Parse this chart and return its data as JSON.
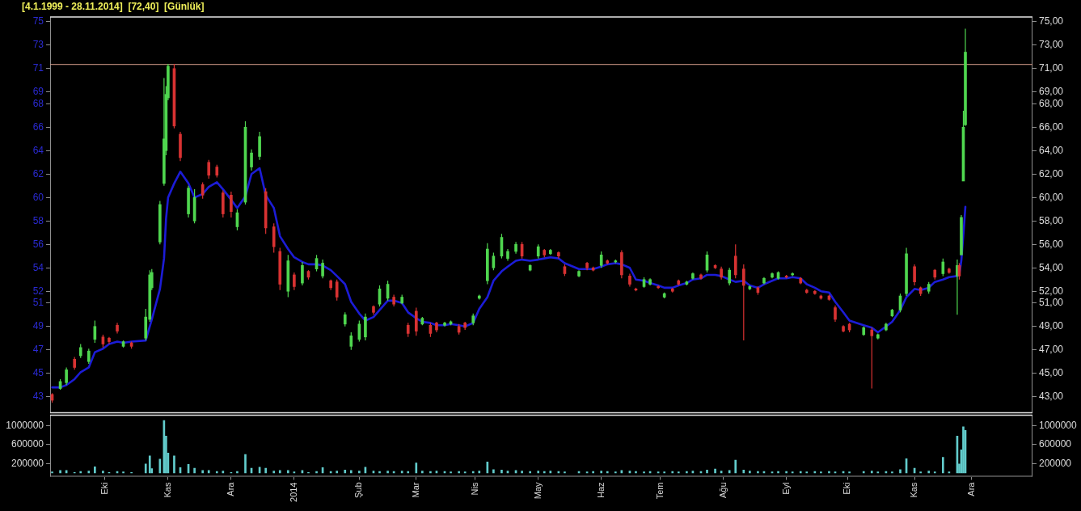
{
  "chart_data": [
    {
      "type": "candlestick",
      "title": "[4.1.1999 - 28.11.2014]  [72,40]  [Günlük]",
      "x": [
        "2013-09-05",
        "2013-09-09",
        "2013-09-12",
        "2013-09-16",
        "2013-09-19",
        "2013-09-23",
        "2013-09-26",
        "2013-09-30",
        "2013-10-03",
        "2013-10-07",
        "2013-10-10",
        "2013-10-14",
        "2013-10-21",
        "2013-10-23",
        "2013-10-24",
        "2013-10-28",
        "2013-10-30",
        "2013-10-31",
        "2013-11-01",
        "2013-11-04",
        "2013-11-07",
        "2013-11-11",
        "2013-11-14",
        "2013-11-18",
        "2013-11-21",
        "2013-11-25",
        "2013-11-28",
        "2013-12-02",
        "2013-12-05",
        "2013-12-09",
        "2013-12-12",
        "2013-12-16",
        "2013-12-19",
        "2013-12-23",
        "2013-12-26",
        "2013-12-30",
        "2014-01-02",
        "2014-01-06",
        "2014-01-09",
        "2014-01-13",
        "2014-01-16",
        "2014-01-20",
        "2014-01-23",
        "2014-01-27",
        "2014-01-30",
        "2014-02-03",
        "2014-02-06",
        "2014-02-10",
        "2014-02-13",
        "2014-02-17",
        "2014-02-20",
        "2014-02-24",
        "2014-02-27",
        "2014-03-03",
        "2014-03-06",
        "2014-03-10",
        "2014-03-13",
        "2014-03-17",
        "2014-03-20",
        "2014-03-24",
        "2014-03-27",
        "2014-03-31",
        "2014-04-03",
        "2014-04-07",
        "2014-04-10",
        "2014-04-14",
        "2014-04-17",
        "2014-04-21",
        "2014-04-24",
        "2014-04-28",
        "2014-05-02",
        "2014-05-05",
        "2014-05-08",
        "2014-05-12",
        "2014-05-15",
        "2014-05-22",
        "2014-05-26",
        "2014-05-29",
        "2014-06-02",
        "2014-06-05",
        "2014-06-09",
        "2014-06-12",
        "2014-06-16",
        "2014-06-19",
        "2014-06-23",
        "2014-06-26",
        "2014-06-30",
        "2014-07-03",
        "2014-07-07",
        "2014-07-10",
        "2014-07-14",
        "2014-07-17",
        "2014-07-21",
        "2014-07-24",
        "2014-07-28",
        "2014-07-31",
        "2014-08-04",
        "2014-08-07",
        "2014-08-11",
        "2014-08-14",
        "2014-08-18",
        "2014-08-21",
        "2014-08-25",
        "2014-08-28",
        "2014-09-01",
        "2014-09-04",
        "2014-09-08",
        "2014-09-11",
        "2014-09-15",
        "2014-09-18",
        "2014-09-22",
        "2014-09-25",
        "2014-09-29",
        "2014-10-02",
        "2014-10-09",
        "2014-10-13",
        "2014-10-16",
        "2014-10-20",
        "2014-10-23",
        "2014-10-27",
        "2014-10-30",
        "2014-11-03",
        "2014-11-06",
        "2014-11-10",
        "2014-11-13",
        "2014-11-17",
        "2014-11-20",
        "2014-11-24",
        "2014-11-25",
        "2014-11-26",
        "2014-11-27",
        "2014-11-28"
      ],
      "ohlc": [
        [
          43.2,
          43.3,
          42.5,
          42.7
        ],
        [
          43.7,
          44.5,
          43.6,
          44.3
        ],
        [
          44.2,
          45.5,
          44.0,
          45.3
        ],
        [
          46.2,
          46.4,
          45.3,
          45.5
        ],
        [
          46.5,
          47.5,
          46.3,
          47.2
        ],
        [
          46.0,
          47.1,
          45.8,
          46.9
        ],
        [
          47.9,
          49.5,
          47.6,
          49.0
        ],
        [
          48.1,
          48.3,
          47.2,
          47.5
        ],
        [
          48.0,
          48.1,
          47.5,
          47.7
        ],
        [
          49.1,
          49.3,
          48.4,
          48.6
        ],
        [
          47.3,
          47.8,
          47.2,
          47.7
        ],
        [
          47.6,
          47.7,
          47.1,
          47.3
        ],
        [
          48.0,
          50.5,
          47.8,
          49.8
        ],
        [
          49.6,
          53.8,
          49.4,
          53.4
        ],
        [
          52.3,
          53.9,
          52.1,
          53.6
        ],
        [
          56.2,
          59.7,
          56.0,
          59.4
        ],
        [
          61.2,
          70.2,
          61.0,
          65.0
        ],
        [
          64.0,
          69.5,
          63.6,
          68.8
        ],
        [
          68.5,
          71.4,
          68.3,
          71.2
        ],
        [
          71.0,
          71.4,
          65.9,
          66.1
        ],
        [
          65.4,
          65.6,
          63.1,
          63.4
        ],
        [
          58.6,
          61.0,
          58.3,
          60.8
        ],
        [
          58.0,
          60.7,
          57.8,
          60.0
        ],
        [
          61.1,
          61.3,
          59.9,
          60.2
        ],
        [
          63.0,
          63.2,
          61.6,
          61.9
        ],
        [
          62.6,
          62.8,
          61.7,
          61.9
        ],
        [
          60.4,
          60.6,
          58.3,
          58.6
        ],
        [
          60.2,
          60.5,
          58.3,
          58.8
        ],
        [
          57.5,
          59.0,
          57.2,
          58.7
        ],
        [
          59.6,
          66.5,
          59.4,
          66.0
        ],
        [
          62.6,
          64.1,
          62.3,
          63.8
        ],
        [
          63.5,
          65.6,
          63.2,
          65.2
        ],
        [
          60.5,
          60.8,
          56.9,
          57.4
        ],
        [
          57.5,
          57.8,
          55.3,
          55.8
        ],
        [
          55.4,
          55.7,
          52.1,
          52.6
        ],
        [
          52.0,
          55.1,
          51.5,
          54.6
        ],
        [
          53.4,
          53.6,
          52.1,
          52.4
        ],
        [
          52.7,
          54.5,
          52.5,
          54.2
        ],
        [
          53.7,
          53.8,
          53.0,
          53.2
        ],
        [
          53.9,
          55.1,
          53.7,
          54.8
        ],
        [
          53.3,
          54.7,
          53.1,
          54.4
        ],
        [
          52.9,
          53.0,
          52.1,
          52.3
        ],
        [
          52.8,
          53.0,
          51.2,
          51.5
        ],
        [
          49.2,
          50.2,
          49.0,
          50.0
        ],
        [
          47.3,
          48.5,
          47.0,
          48.2
        ],
        [
          47.9,
          49.5,
          47.7,
          49.2
        ],
        [
          48.1,
          50.1,
          47.8,
          49.8
        ],
        [
          50.7,
          50.8,
          50.0,
          50.2
        ],
        [
          50.9,
          52.5,
          50.7,
          52.2
        ],
        [
          51.4,
          52.9,
          51.2,
          52.6
        ],
        [
          51.5,
          51.7,
          50.7,
          50.9
        ],
        [
          51.0,
          51.7,
          50.9,
          51.5
        ],
        [
          49.1,
          49.3,
          48.1,
          48.4
        ],
        [
          50.3,
          50.6,
          48.2,
          48.6
        ],
        [
          49.2,
          49.8,
          49.1,
          49.7
        ],
        [
          49.1,
          49.3,
          48.1,
          48.4
        ],
        [
          49.3,
          49.4,
          48.5,
          48.7
        ],
        [
          49.1,
          49.4,
          49.0,
          49.3
        ],
        [
          49.2,
          49.5,
          49.1,
          49.4
        ],
        [
          49.0,
          49.2,
          48.3,
          48.5
        ],
        [
          49.3,
          49.4,
          48.7,
          48.9
        ],
        [
          49.3,
          50.1,
          49.1,
          49.9
        ],
        [
          51.4,
          51.7,
          51.3,
          51.6
        ],
        [
          52.9,
          56.1,
          52.6,
          55.6
        ],
        [
          54.0,
          55.3,
          53.8,
          55.0
        ],
        [
          55.0,
          56.9,
          54.8,
          56.6
        ],
        [
          54.8,
          55.6,
          54.6,
          55.4
        ],
        [
          55.4,
          56.2,
          55.2,
          56.0
        ],
        [
          56.0,
          56.2,
          54.8,
          55.0
        ],
        [
          53.8,
          54.3,
          53.7,
          54.2
        ],
        [
          55.0,
          56.0,
          54.8,
          55.8
        ],
        [
          55.5,
          55.6,
          54.9,
          55.1
        ],
        [
          55.2,
          55.6,
          55.1,
          55.5
        ],
        [
          55.3,
          55.4,
          54.8,
          55.0
        ],
        [
          54.1,
          54.3,
          53.3,
          53.5
        ],
        [
          53.3,
          53.8,
          53.2,
          53.7
        ],
        [
          54.4,
          54.5,
          53.8,
          54.0
        ],
        [
          54.0,
          54.1,
          53.7,
          53.8
        ],
        [
          54.2,
          55.4,
          54.0,
          55.1
        ],
        [
          54.6,
          54.7,
          54.3,
          54.4
        ],
        [
          54.5,
          54.7,
          54.4,
          54.6
        ],
        [
          55.3,
          55.5,
          53.1,
          53.4
        ],
        [
          53.3,
          53.5,
          52.4,
          52.6
        ],
        [
          52.2,
          52.3,
          52.0,
          52.1
        ],
        [
          52.4,
          53.2,
          52.3,
          53.0
        ],
        [
          52.6,
          53.1,
          52.5,
          53.0
        ],
        [
          52.4,
          52.5,
          52.2,
          52.3
        ],
        [
          51.5,
          51.9,
          51.4,
          51.8
        ],
        [
          52.2,
          52.3,
          51.9,
          52.0
        ],
        [
          52.9,
          53.0,
          52.5,
          52.6
        ],
        [
          52.6,
          52.9,
          52.5,
          52.8
        ],
        [
          53.1,
          53.6,
          53.0,
          53.5
        ],
        [
          53.4,
          53.5,
          53.0,
          53.1
        ],
        [
          53.8,
          55.4,
          53.6,
          55.1
        ],
        [
          54.2,
          54.3,
          53.9,
          54.0
        ],
        [
          53.9,
          54.1,
          53.0,
          53.2
        ],
        [
          52.7,
          54.0,
          52.5,
          53.8
        ],
        [
          55.0,
          56.0,
          53.1,
          53.4
        ],
        [
          53.9,
          54.3,
          47.8,
          52.5
        ],
        [
          52.2,
          52.5,
          52.1,
          52.4
        ],
        [
          52.3,
          52.4,
          51.7,
          51.9
        ],
        [
          52.7,
          53.2,
          52.6,
          53.1
        ],
        [
          53.2,
          53.6,
          53.1,
          53.5
        ],
        [
          53.1,
          53.7,
          53.0,
          53.6
        ],
        [
          53.3,
          53.4,
          53.1,
          53.2
        ],
        [
          53.4,
          53.6,
          53.3,
          53.5
        ],
        [
          53.1,
          53.2,
          52.6,
          52.7
        ],
        [
          52.1,
          52.2,
          51.8,
          51.9
        ],
        [
          52.0,
          52.1,
          51.7,
          51.8
        ],
        [
          51.6,
          51.7,
          51.3,
          51.4
        ],
        [
          51.6,
          51.7,
          51.2,
          51.3
        ],
        [
          50.6,
          50.8,
          49.4,
          49.6
        ],
        [
          49.0,
          49.1,
          48.5,
          48.6
        ],
        [
          49.2,
          49.3,
          48.5,
          48.7
        ],
        [
          48.3,
          49.0,
          48.2,
          48.9
        ],
        [
          48.7,
          48.9,
          43.7,
          48.2
        ],
        [
          48.0,
          48.4,
          47.9,
          48.3
        ],
        [
          48.7,
          49.3,
          48.6,
          49.2
        ],
        [
          49.9,
          50.5,
          49.8,
          50.4
        ],
        [
          50.4,
          51.8,
          50.2,
          51.6
        ],
        [
          51.8,
          55.7,
          51.6,
          55.2
        ],
        [
          54.1,
          54.3,
          52.5,
          52.8
        ],
        [
          52.3,
          52.4,
          51.6,
          51.8
        ],
        [
          52.0,
          52.8,
          51.8,
          52.6
        ],
        [
          53.8,
          53.9,
          53.0,
          53.2
        ],
        [
          53.5,
          54.8,
          53.3,
          54.5
        ],
        [
          53.9,
          54.0,
          53.5,
          53.6
        ],
        [
          53.3,
          54.7,
          50.0,
          54.2
        ],
        [
          54.2,
          54.4,
          53.0,
          53.3
        ],
        [
          55.1,
          58.5,
          55.1,
          58.3
        ],
        [
          61.4,
          67.4,
          61.4,
          66.0
        ],
        [
          66.2,
          74.4,
          66.1,
          72.4
        ]
      ],
      "colors": [
        "#d83232",
        "#4fd64f",
        "#4fd64f",
        "#d83232",
        "#4fd64f",
        "#4fd64f",
        "#4fd64f",
        "#d83232",
        "#d83232",
        "#d83232",
        "#4fd64f",
        "#d83232",
        "#4fd64f",
        "#4fd64f",
        "#4fd64f",
        "#4fd64f",
        "#4fd64f",
        "#4fd64f",
        "#4fd64f",
        "#d83232",
        "#d83232",
        "#4fd64f",
        "#4fd64f",
        "#d83232",
        "#d83232",
        "#d83232",
        "#d83232",
        "#d83232",
        "#4fd64f",
        "#4fd64f",
        "#4fd64f",
        "#4fd64f",
        "#d83232",
        "#d83232",
        "#d83232",
        "#4fd64f",
        "#d83232",
        "#4fd64f",
        "#d83232",
        "#4fd64f",
        "#4fd64f",
        "#d83232",
        "#d83232",
        "#4fd64f",
        "#4fd64f",
        "#4fd64f",
        "#4fd64f",
        "#d83232",
        "#4fd64f",
        "#4fd64f",
        "#d83232",
        "#4fd64f",
        "#d83232",
        "#d83232",
        "#4fd64f",
        "#d83232",
        "#d83232",
        "#4fd64f",
        "#4fd64f",
        "#d83232",
        "#d83232",
        "#4fd64f",
        "#4fd64f",
        "#4fd64f",
        "#4fd64f",
        "#4fd64f",
        "#4fd64f",
        "#4fd64f",
        "#d83232",
        "#4fd64f",
        "#4fd64f",
        "#d83232",
        "#4fd64f",
        "#d83232",
        "#d83232",
        "#4fd64f",
        "#d83232",
        "#d83232",
        "#4fd64f",
        "#d83232",
        "#4fd64f",
        "#d83232",
        "#d83232",
        "#d83232",
        "#4fd64f",
        "#4fd64f",
        "#d83232",
        "#4fd64f",
        "#d83232",
        "#d83232",
        "#4fd64f",
        "#4fd64f",
        "#d83232",
        "#4fd64f",
        "#d83232",
        "#d83232",
        "#4fd64f",
        "#d83232",
        "#d83232",
        "#4fd64f",
        "#d83232",
        "#4fd64f",
        "#4fd64f",
        "#4fd64f",
        "#d83232",
        "#4fd64f",
        "#d83232",
        "#d83232",
        "#d83232",
        "#d83232",
        "#d83232",
        "#d83232",
        "#d83232",
        "#d83232",
        "#4fd64f",
        "#d83232",
        "#4fd64f",
        "#4fd64f",
        "#4fd64f",
        "#4fd64f",
        "#4fd64f",
        "#d83232",
        "#d83232",
        "#4fd64f",
        "#d83232",
        "#4fd64f",
        "#d83232",
        "#4fd64f",
        "#d83232",
        "#4fd64f",
        "#4fd64f",
        "#4fd64f"
      ],
      "series": [
        {
          "type": "line",
          "color": "#1c1cd6",
          "values": [
            43.8,
            43.8,
            44.0,
            44.5,
            45.1,
            45.5,
            46.8,
            47.1,
            47.5,
            47.7,
            47.6,
            47.7,
            47.8,
            49.0,
            49.6,
            52.2,
            54.8,
            58.2,
            60.0,
            61.2,
            62.2,
            61.2,
            60.0,
            60.3,
            60.9,
            61.3,
            60.7,
            59.8,
            59.1,
            60.1,
            62.0,
            62.5,
            60.2,
            59.1,
            56.7,
            55.6,
            54.9,
            54.5,
            54.3,
            54.3,
            54.2,
            53.8,
            53.3,
            52.6,
            51.1,
            50.1,
            49.5,
            49.8,
            50.4,
            51.2,
            51.2,
            51.0,
            50.2,
            49.7,
            49.4,
            49.3,
            49.1,
            49.1,
            49.2,
            49.1,
            49.0,
            49.3,
            50.5,
            51.5,
            52.9,
            53.7,
            54.1,
            54.6,
            54.7,
            54.6,
            54.7,
            54.8,
            54.9,
            54.8,
            54.4,
            53.9,
            53.9,
            53.9,
            54.1,
            54.3,
            54.4,
            54.3,
            54.0,
            53.0,
            52.9,
            52.7,
            52.5,
            52.3,
            52.3,
            52.5,
            52.7,
            53.0,
            53.1,
            53.4,
            53.4,
            53.3,
            53.0,
            52.8,
            52.9,
            52.5,
            52.3,
            52.6,
            52.9,
            53.1,
            53.1,
            53.2,
            53.1,
            52.6,
            52.3,
            52.0,
            51.9,
            51.1,
            50.2,
            49.5,
            49.1,
            48.9,
            48.5,
            49.0,
            49.4,
            50.4,
            51.5,
            52.2,
            52.1,
            52.3,
            52.8,
            53.0,
            53.2,
            53.3,
            53.4,
            54.6,
            56.8,
            59.2
          ]
        }
      ],
      "xlim": [
        "2013-09-04",
        "2014-12-31"
      ],
      "ylim": [
        41.6,
        75.4
      ],
      "yticks": [
        43,
        45,
        47,
        49,
        51,
        52,
        54,
        56,
        58,
        60,
        62,
        64,
        66,
        68,
        69,
        71,
        73,
        75
      ],
      "y2lim": [
        41.6,
        75.4
      ],
      "y2ticks": [
        {
          "value": 43,
          "label": "43,00"
        },
        {
          "value": 45,
          "label": "45,00"
        },
        {
          "value": 47,
          "label": "47,00"
        },
        {
          "value": 49,
          "label": "49,00"
        },
        {
          "value": 51,
          "label": "51,00"
        },
        {
          "value": 52,
          "label": "52,00"
        },
        {
          "value": 54,
          "label": "54,00"
        },
        {
          "value": 56,
          "label": "56,00"
        },
        {
          "value": 58,
          "label": "58,00"
        },
        {
          "value": 60,
          "label": "60,00"
        },
        {
          "value": 62,
          "label": "62,00"
        },
        {
          "value": 64,
          "label": "64,00"
        },
        {
          "value": 66,
          "label": "66,00"
        },
        {
          "value": 68,
          "label": "68,00"
        },
        {
          "value": 69,
          "label": "69,00"
        },
        {
          "value": 71,
          "label": "71,00"
        },
        {
          "value": 73,
          "label": "73,00"
        },
        {
          "value": 75,
          "label": "75,00"
        }
      ],
      "ref_lines": [
        {
          "axis": "y",
          "value": 71.35,
          "color": "#dba08e"
        }
      ],
      "tick_labels": "y"
    },
    {
      "type": "bar",
      "color": "#62cccc",
      "x": [
        "2013-09-05",
        "2013-09-09",
        "2013-09-12",
        "2013-09-16",
        "2013-09-19",
        "2013-09-23",
        "2013-09-26",
        "2013-09-30",
        "2013-10-03",
        "2013-10-07",
        "2013-10-10",
        "2013-10-14",
        "2013-10-21",
        "2013-10-23",
        "2013-10-24",
        "2013-10-28",
        "2013-10-30",
        "2013-10-31",
        "2013-11-01",
        "2013-11-04",
        "2013-11-07",
        "2013-11-11",
        "2013-11-14",
        "2013-11-18",
        "2013-11-21",
        "2013-11-25",
        "2013-11-28",
        "2013-12-02",
        "2013-12-05",
        "2013-12-09",
        "2013-12-12",
        "2013-12-16",
        "2013-12-19",
        "2013-12-23",
        "2013-12-26",
        "2013-12-30",
        "2014-01-02",
        "2014-01-06",
        "2014-01-09",
        "2014-01-13",
        "2014-01-16",
        "2014-01-20",
        "2014-01-23",
        "2014-01-27",
        "2014-01-30",
        "2014-02-03",
        "2014-02-06",
        "2014-02-10",
        "2014-02-13",
        "2014-02-17",
        "2014-02-20",
        "2014-02-24",
        "2014-02-27",
        "2014-03-03",
        "2014-03-06",
        "2014-03-10",
        "2014-03-13",
        "2014-03-17",
        "2014-03-20",
        "2014-03-24",
        "2014-03-27",
        "2014-03-31",
        "2014-04-03",
        "2014-04-07",
        "2014-04-10",
        "2014-04-14",
        "2014-04-17",
        "2014-04-21",
        "2014-04-24",
        "2014-04-28",
        "2014-05-02",
        "2014-05-05",
        "2014-05-08",
        "2014-05-12",
        "2014-05-15",
        "2014-05-22",
        "2014-05-26",
        "2014-05-29",
        "2014-06-02",
        "2014-06-05",
        "2014-06-09",
        "2014-06-12",
        "2014-06-16",
        "2014-06-19",
        "2014-06-23",
        "2014-06-26",
        "2014-06-30",
        "2014-07-03",
        "2014-07-07",
        "2014-07-10",
        "2014-07-14",
        "2014-07-17",
        "2014-07-21",
        "2014-07-24",
        "2014-07-28",
        "2014-07-31",
        "2014-08-04",
        "2014-08-07",
        "2014-08-11",
        "2014-08-14",
        "2014-08-18",
        "2014-08-21",
        "2014-08-25",
        "2014-08-28",
        "2014-09-01",
        "2014-09-04",
        "2014-09-08",
        "2014-09-11",
        "2014-09-15",
        "2014-09-18",
        "2014-09-22",
        "2014-09-25",
        "2014-09-29",
        "2014-10-02",
        "2014-10-09",
        "2014-10-13",
        "2014-10-16",
        "2014-10-20",
        "2014-10-23",
        "2014-10-27",
        "2014-10-30",
        "2014-11-03",
        "2014-11-06",
        "2014-11-10",
        "2014-11-13",
        "2014-11-17",
        "2014-11-20",
        "2014-11-24",
        "2014-11-25",
        "2014-11-26",
        "2014-11-27",
        "2014-11-28"
      ],
      "values": [
        20000,
        50000,
        50000,
        10000,
        30000,
        40000,
        130000,
        40000,
        10000,
        30000,
        20000,
        10000,
        190000,
        360000,
        90000,
        290000,
        1110000,
        780000,
        420000,
        360000,
        110000,
        180000,
        100000,
        50000,
        50000,
        30000,
        40000,
        10000,
        30000,
        390000,
        100000,
        120000,
        100000,
        40000,
        50000,
        50000,
        20000,
        50000,
        10000,
        30000,
        110000,
        30000,
        40000,
        60000,
        50000,
        40000,
        120000,
        40000,
        30000,
        40000,
        30000,
        40000,
        30000,
        210000,
        40000,
        30000,
        40000,
        30000,
        20000,
        30000,
        20000,
        30000,
        40000,
        230000,
        70000,
        60000,
        40000,
        50000,
        40000,
        30000,
        40000,
        30000,
        40000,
        30000,
        20000,
        30000,
        20000,
        30000,
        40000,
        30000,
        20000,
        50000,
        40000,
        30000,
        20000,
        30000,
        20000,
        20000,
        30000,
        20000,
        30000,
        40000,
        30000,
        60000,
        80000,
        40000,
        50000,
        270000,
        60000,
        40000,
        30000,
        30000,
        20000,
        30000,
        30000,
        20000,
        30000,
        20000,
        30000,
        20000,
        30000,
        20000,
        30000,
        20000,
        30000,
        40000,
        20000,
        30000,
        20000,
        70000,
        300000,
        100000,
        20000,
        40000,
        20000,
        330000,
        20000,
        780000,
        190000,
        490000,
        980000,
        900000
      ],
      "xlim": [
        "2013-09-04",
        "2014-12-31"
      ],
      "xticks": [
        {
          "value": "2013-10-01",
          "label": "Eki"
        },
        {
          "value": "2013-11-01",
          "label": "Kas"
        },
        {
          "value": "2013-12-02",
          "label": "Ara"
        },
        {
          "value": "2014-01-02",
          "label": "2014"
        },
        {
          "value": "2014-02-03",
          "label": "Şub"
        },
        {
          "value": "2014-03-03",
          "label": "Mar"
        },
        {
          "value": "2014-04-01",
          "label": "Nis"
        },
        {
          "value": "2014-05-02",
          "label": "May"
        },
        {
          "value": "2014-06-02",
          "label": "Haz"
        },
        {
          "value": "2014-07-01",
          "label": "Tem"
        },
        {
          "value": "2014-08-01",
          "label": "Ağu"
        },
        {
          "value": "2014-09-01",
          "label": "Eyl"
        },
        {
          "value": "2014-10-01",
          "label": "Eki"
        },
        {
          "value": "2014-11-03",
          "label": "Kas"
        },
        {
          "value": "2014-12-01",
          "label": "Ara"
        }
      ],
      "ylim": [
        -80000,
        1225000
      ],
      "yticks": [
        200000,
        600000,
        1000000
      ],
      "y2lim": [
        -80000,
        1225000
      ],
      "y2ticks": [
        200000,
        600000,
        1000000
      ]
    }
  ]
}
